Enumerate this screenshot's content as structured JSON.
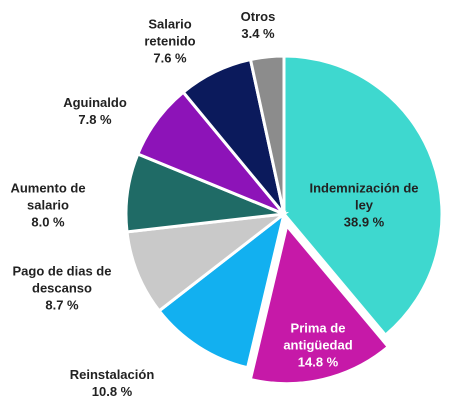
{
  "chart_data": {
    "type": "pie",
    "categories": [
      "Indemnización de ley",
      "Prima de antigüedad",
      "Reinstalación",
      "Pago de dias de descanso",
      "Aumento de salario",
      "Aguinaldo",
      "Salario retenido",
      "Otros"
    ],
    "values": [
      38.9,
      14.8,
      10.8,
      8.7,
      8.0,
      7.8,
      7.6,
      3.4
    ],
    "value_labels": [
      "38.9 %",
      "14.8 %",
      "10.8 %",
      "8.7 %",
      "8.0 %",
      "7.8 %",
      "7.6 %",
      "3.4 %"
    ],
    "colors": [
      "#3ed8cf",
      "#c619a8",
      "#12b0f0",
      "#c9c9c9",
      "#1f6b66",
      "#8d13b8",
      "#0b1a5c",
      "#8c8c8c"
    ]
  }
}
